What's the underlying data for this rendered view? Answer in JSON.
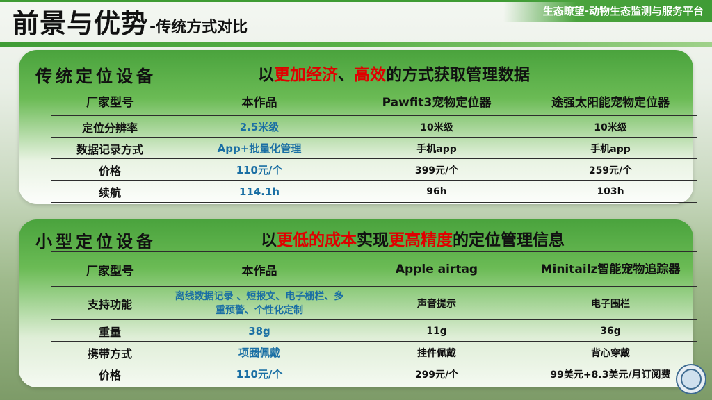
{
  "header": {
    "title_main": "前景与优势",
    "title_sub": "-传统方式对比",
    "brand": "生态瞭望-动物生态监测与服务平台"
  },
  "section1": {
    "title": "传统定位设备",
    "slogan_parts": [
      "以",
      "更加经济",
      "、",
      "高效",
      "的方式获取管理数据"
    ],
    "header_row": [
      "厂家型号",
      "本作品",
      "Pawfit3宠物定位器",
      "途强太阳能宠物定位器"
    ],
    "rows": [
      [
        "定位分辨率",
        "2.5米级",
        "10米级",
        "10米级"
      ],
      [
        "数据记录方式",
        "App+批量化管理",
        "手机app",
        "手机app"
      ],
      [
        "价格",
        "110元/个",
        "399元/个",
        "259元/个"
      ],
      [
        "续航",
        "114.1h",
        "96h",
        "103h"
      ]
    ]
  },
  "section2": {
    "title": "小型定位设备",
    "slogan_parts": [
      "以",
      "更低的成本",
      "实现",
      "更高精度",
      "的定位管理信息"
    ],
    "header_row": [
      "厂家型号",
      "本作品",
      "Apple airtag",
      "Minitailz智能宠物追踪器"
    ],
    "rows": [
      [
        "支持功能",
        "离线数据记录 、短报文、电子栅栏、多重预警、个性化定制",
        "声音提示",
        "电子围栏"
      ],
      [
        "重量",
        "38g",
        "11g",
        "36g"
      ],
      [
        "携带方式",
        "项圈佩戴",
        "挂件佩戴",
        "背心穿戴"
      ],
      [
        "价格",
        "110元/个",
        "299元/个",
        "99美元+8.3美元/月订阅费"
      ]
    ]
  },
  "colors": {
    "accent_green": "#3f9c35",
    "highlight_red": "#e00000",
    "value_blue": "#1a6fa4"
  },
  "icons": {
    "emblem": "university-emblem-icon"
  }
}
